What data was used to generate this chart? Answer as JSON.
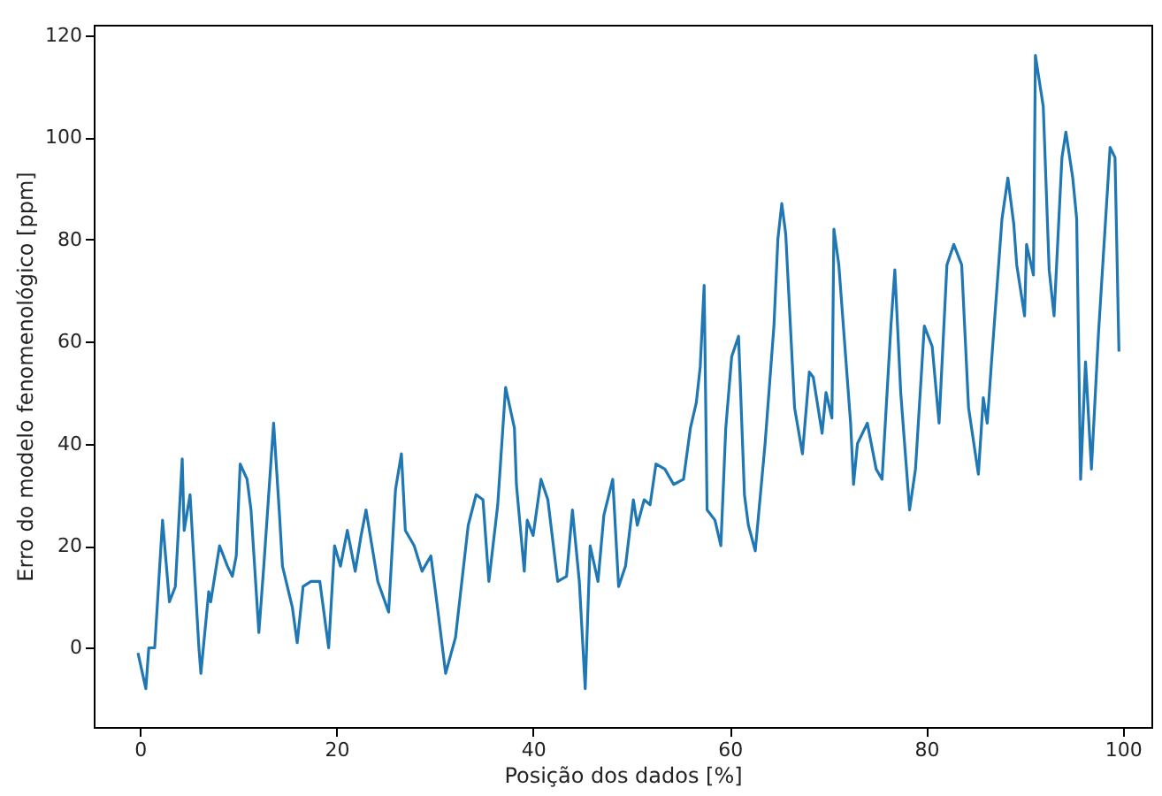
{
  "chart_data": {
    "type": "line",
    "xlabel": "Posição dos dados [%]",
    "ylabel": "Erro do modelo fenomenológico [ppm]",
    "xlim": [
      -4.7,
      102.9
    ],
    "ylim": [
      -15.5,
      122
    ],
    "xticks": [
      0,
      20,
      40,
      60,
      80,
      100
    ],
    "yticks": [
      0,
      20,
      40,
      60,
      80,
      100,
      120
    ],
    "grid": false,
    "series": [
      {
        "color": "#1f77b4",
        "x": [
          -0.2,
          0.6,
          0.9,
          1.5,
          2.3,
          3.0,
          3.6,
          4.3,
          4.5,
          5.1,
          6.0,
          6.2,
          7.0,
          7.2,
          8.1,
          8.9,
          9.4,
          9.8,
          10.2,
          10.9,
          11.3,
          12.1,
          12.6,
          13.6,
          14.2,
          14.5,
          15.5,
          16.0,
          16.6,
          17.4,
          18.3,
          19.2,
          19.8,
          20.4,
          21.1,
          21.9,
          22.5,
          23.0,
          24.2,
          25.3,
          26.0,
          26.6,
          27.0,
          27.9,
          28.7,
          29.6,
          30.2,
          31.1,
          32.1,
          33.4,
          34.2,
          34.9,
          35.5,
          36.4,
          37.2,
          38.1,
          38.3,
          39.1,
          39.4,
          40.0,
          40.8,
          41.5,
          42.5,
          43.4,
          44.0,
          44.7,
          45.3,
          45.8,
          46.6,
          47.2,
          48.1,
          48.7,
          49.4,
          50.2,
          50.6,
          51.3,
          51.9,
          52.5,
          53.4,
          54.3,
          55.3,
          56.0,
          56.6,
          57.0,
          57.4,
          57.7,
          58.5,
          59.1,
          59.6,
          60.2,
          60.9,
          61.5,
          61.9,
          62.6,
          63.6,
          64.5,
          64.9,
          65.3,
          65.7,
          66.6,
          67.4,
          68.1,
          68.5,
          69.4,
          69.8,
          70.4,
          70.6,
          71.1,
          72.3,
          72.6,
          73.0,
          74.0,
          74.9,
          75.5,
          76.4,
          76.8,
          77.4,
          78.3,
          78.9,
          79.8,
          80.6,
          81.3,
          82.1,
          82.8,
          83.6,
          84.3,
          85.3,
          85.8,
          86.2,
          86.6,
          87.7,
          88.3,
          88.9,
          89.2,
          90.0,
          90.2,
          90.9,
          91.1,
          91.9,
          92.5,
          93.0,
          93.8,
          94.2,
          94.9,
          95.3,
          95.7,
          96.2,
          96.8,
          97.5,
          98.7,
          99.2,
          99.6
        ],
        "values": [
          -1,
          -8,
          0,
          0,
          25,
          9,
          12,
          37,
          23,
          30,
          0,
          -5,
          11,
          9,
          20,
          16,
          14,
          18,
          36,
          33,
          27,
          3,
          16,
          44,
          26,
          16,
          8,
          1,
          12,
          13,
          13,
          0,
          20,
          16,
          23,
          15,
          22,
          27,
          13,
          7,
          31,
          38,
          23,
          20,
          15,
          18,
          9,
          -5,
          2,
          24,
          30,
          29,
          13,
          28,
          51,
          43,
          32,
          15,
          25,
          22,
          33,
          29,
          13,
          14,
          27,
          13,
          -8,
          20,
          13,
          26,
          33,
          12,
          16,
          29,
          24,
          29,
          28,
          36,
          35,
          32,
          33,
          43,
          48,
          55,
          71,
          27,
          25,
          20,
          43,
          57,
          61,
          30,
          24,
          19,
          40,
          63,
          80,
          87,
          81,
          47,
          38,
          54,
          53,
          42,
          50,
          45,
          82,
          75,
          44,
          32,
          40,
          44,
          35,
          33,
          63,
          74,
          50,
          27,
          35,
          63,
          59,
          44,
          75,
          79,
          75,
          47,
          34,
          49,
          44,
          55,
          84,
          92,
          83,
          75,
          65,
          79,
          73,
          116,
          106,
          74,
          65,
          96,
          101,
          92,
          84,
          33,
          56,
          35,
          61,
          98,
          96,
          58
        ]
      }
    ]
  }
}
